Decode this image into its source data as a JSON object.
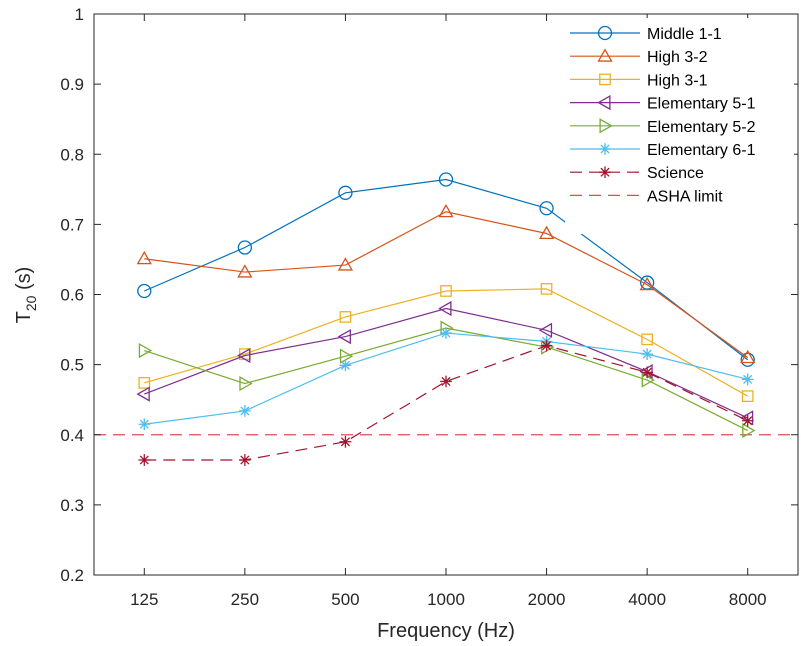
{
  "chart_data": {
    "type": "line",
    "title": "",
    "xlabel": "Frequency (Hz)",
    "ylabel_main": "T",
    "ylabel_sub": "20",
    "ylabel_unit": " (s)",
    "categories": [
      "125",
      "250",
      "500",
      "1000",
      "2000",
      "4000",
      "8000"
    ],
    "ylim": [
      0.2,
      1
    ],
    "yticks": [
      "0.2",
      "0.3",
      "0.4",
      "0.5",
      "0.6",
      "0.7",
      "0.8",
      "0.9",
      "1"
    ],
    "legend_position": "top-right",
    "grid": false,
    "series": [
      {
        "name": "Middle 1-1",
        "color": "#0072BD",
        "marker": "circle",
        "dashed": false,
        "values": [
          0.605,
          0.667,
          0.745,
          0.764,
          0.723,
          0.617,
          0.507
        ]
      },
      {
        "name": "High 3-2",
        "color": "#D95319",
        "marker": "triangle-up",
        "dashed": false,
        "values": [
          0.651,
          0.632,
          0.642,
          0.718,
          0.687,
          0.614,
          0.51
        ]
      },
      {
        "name": "High 3-1",
        "color": "#EDB120",
        "marker": "square",
        "dashed": false,
        "values": [
          0.474,
          0.515,
          0.568,
          0.605,
          0.608,
          0.536,
          0.455
        ]
      },
      {
        "name": "Elementary 5-1",
        "color": "#7E2F8E",
        "marker": "triangle-left",
        "dashed": false,
        "values": [
          0.458,
          0.513,
          0.54,
          0.58,
          0.549,
          0.49,
          0.424
        ]
      },
      {
        "name": "Elementary 5-2",
        "color": "#77AC30",
        "marker": "triangle-right",
        "dashed": false,
        "values": [
          0.52,
          0.473,
          0.512,
          0.552,
          0.525,
          0.478,
          0.406
        ]
      },
      {
        "name": "Elementary 6-1",
        "color": "#4DBEEE",
        "marker": "asterisk",
        "dashed": false,
        "values": [
          0.415,
          0.434,
          0.499,
          0.545,
          0.533,
          0.515,
          0.479
        ]
      },
      {
        "name": "Science",
        "color": "#A2142F",
        "marker": "asterisk",
        "dashed": true,
        "values": [
          0.364,
          0.364,
          0.39,
          0.476,
          0.527,
          0.489,
          0.42
        ]
      }
    ],
    "reference_line": {
      "name": "ASHA limit",
      "value": 0.4,
      "color": "#D95050",
      "dashed": true
    }
  }
}
